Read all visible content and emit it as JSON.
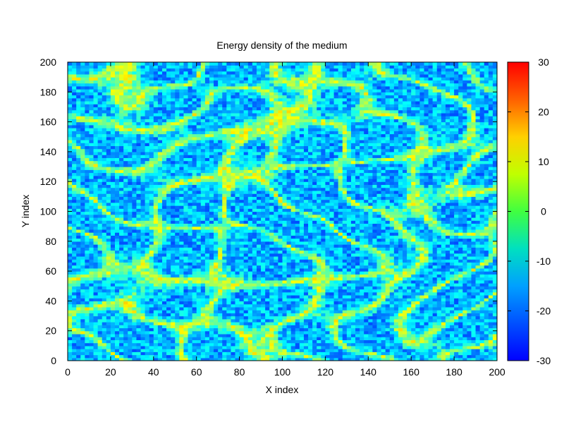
{
  "chart_data": {
    "type": "heatmap",
    "title": "Energy density of the medium",
    "xlabel": "X index",
    "ylabel": "Y index",
    "xlim": [
      0,
      200
    ],
    "ylim": [
      0,
      200
    ],
    "x_ticks": [
      0,
      20,
      40,
      60,
      80,
      100,
      120,
      140,
      160,
      180,
      200
    ],
    "y_ticks": [
      0,
      20,
      40,
      60,
      80,
      100,
      120,
      140,
      160,
      180,
      200
    ],
    "colorbar": {
      "range": [
        -30,
        30
      ],
      "ticks": [
        -30,
        -20,
        -10,
        0,
        10,
        20,
        30
      ],
      "colormap": "jet"
    },
    "field_description": {
      "background_value": -12,
      "ridge_value": 4,
      "noise_amplitude": 6,
      "pattern": "labyrinthine bands"
    },
    "colors": {
      "low": "#0000ff",
      "mid": "#40ff40",
      "high": "#ff0000"
    }
  }
}
